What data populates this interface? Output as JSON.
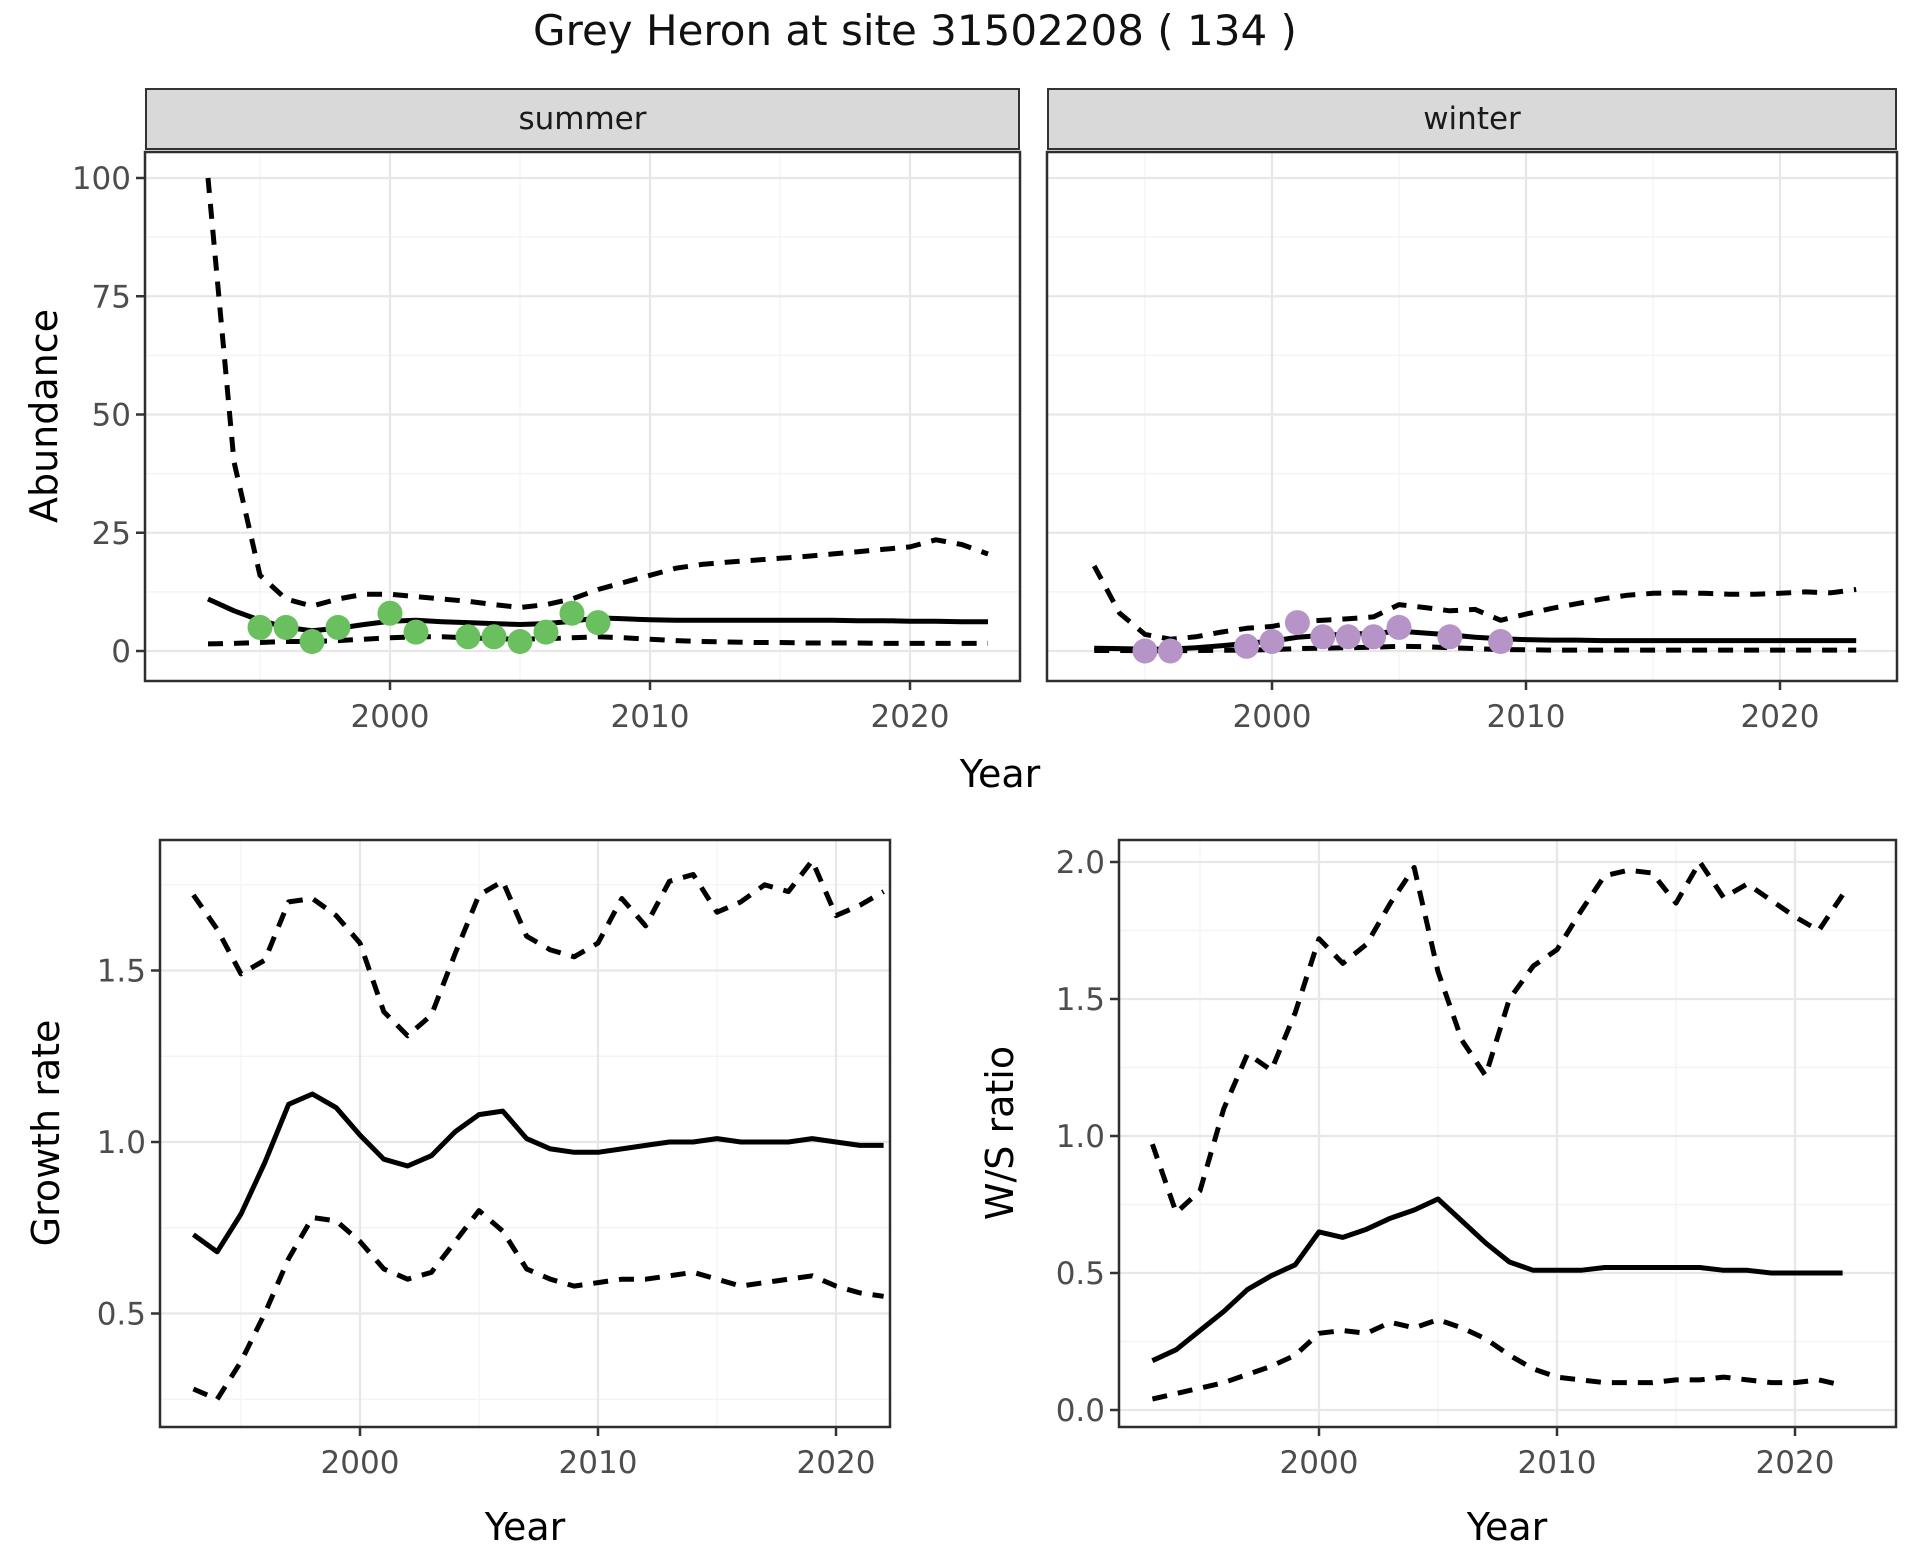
{
  "title": "Grey Heron at site 31502208 ( 134 )",
  "colors": {
    "summer_points": "#6abf5e",
    "winter_points": "#b794c7",
    "line": "#000000",
    "strip_background": "#d9d9d9",
    "tick_text": "#4d4d4d"
  },
  "chart_data": [
    {
      "id": "abundance-summer",
      "type": "line",
      "facet_label": "summer",
      "xlabel": "Year",
      "ylabel": "Abundance",
      "xlim": [
        1990.5,
        2024.6
      ],
      "ylim": [
        -6,
        106
      ],
      "grid": true,
      "legend": "none",
      "xticks": [
        2000,
        2010,
        2020
      ],
      "xtick_labels": [
        "2000",
        "2010",
        "2020"
      ],
      "xticks_minor": [
        1995,
        2005,
        2015
      ],
      "yticks": [
        0,
        25,
        50,
        75,
        100
      ],
      "ytick_labels": [
        "0",
        "25",
        "50",
        "75",
        "100"
      ],
      "yticks_minor": [
        12.5,
        37.5,
        62.5,
        87.5
      ],
      "show_ytick_labels": true,
      "x": [
        1993,
        1994,
        1995,
        1996,
        1997,
        1998,
        1999,
        2000,
        2001,
        2002,
        2003,
        2004,
        2005,
        2006,
        2007,
        2008,
        2009,
        2010,
        2011,
        2012,
        2013,
        2014,
        2015,
        2016,
        2017,
        2018,
        2019,
        2020,
        2021,
        2022,
        2023
      ],
      "series": [
        {
          "name": "median",
          "style": "solid",
          "values": [
            11,
            8.5,
            6.5,
            5,
            4.3,
            4.8,
            5.6,
            6.3,
            6.5,
            6.2,
            6,
            5.8,
            5.6,
            5.8,
            6.3,
            7,
            6.8,
            6.6,
            6.5,
            6.5,
            6.5,
            6.5,
            6.5,
            6.5,
            6.5,
            6.4,
            6.4,
            6.3,
            6.3,
            6.2,
            6.2
          ]
        },
        {
          "name": "upper-ci",
          "style": "dashed",
          "values": [
            100,
            40,
            16,
            11,
            9.5,
            11,
            12,
            12,
            11.5,
            11,
            10.5,
            9.8,
            9.2,
            9.8,
            11,
            13,
            14.5,
            16,
            17.5,
            18.3,
            18.8,
            19.2,
            19.6,
            20,
            20.5,
            21,
            21.5,
            22,
            23.5,
            22.5,
            20.5
          ]
        },
        {
          "name": "lower-ci",
          "style": "dashed",
          "values": [
            1.5,
            1.6,
            1.8,
            2,
            2,
            2.2,
            2.5,
            2.8,
            3,
            3,
            2.8,
            2.6,
            2.5,
            2.6,
            2.8,
            3,
            2.8,
            2.5,
            2.2,
            2,
            1.9,
            1.8,
            1.8,
            1.7,
            1.7,
            1.7,
            1.6,
            1.6,
            1.6,
            1.6,
            1.6
          ]
        }
      ],
      "points": {
        "color": "#6abf5e",
        "data": [
          [
            1995,
            5
          ],
          [
            1996,
            5
          ],
          [
            1997,
            2
          ],
          [
            1998,
            5
          ],
          [
            2000,
            8
          ],
          [
            2001,
            4
          ],
          [
            2003,
            3
          ],
          [
            2004,
            3
          ],
          [
            2005,
            2
          ],
          [
            2006,
            4
          ],
          [
            2007,
            8
          ],
          [
            2008,
            6
          ]
        ]
      }
    },
    {
      "id": "abundance-winter",
      "type": "line",
      "facet_label": "winter",
      "xlabel": "Year",
      "ylabel": "Abundance",
      "xlim": [
        1991.1,
        2024.6
      ],
      "ylim": [
        -6,
        106
      ],
      "grid": true,
      "legend": "none",
      "xticks": [
        2000,
        2010,
        2020
      ],
      "xtick_labels": [
        "2000",
        "2010",
        "2020"
      ],
      "xticks_minor": [
        1995,
        2005,
        2015
      ],
      "yticks": [
        0,
        25,
        50,
        75,
        100
      ],
      "ytick_labels": [
        "0",
        "25",
        "50",
        "75",
        "100"
      ],
      "yticks_minor": [
        12.5,
        37.5,
        62.5,
        87.5
      ],
      "show_ytick_labels": false,
      "x": [
        1993,
        1994,
        1995,
        1996,
        1997,
        1998,
        1999,
        2000,
        2001,
        2002,
        2003,
        2004,
        2005,
        2006,
        2007,
        2008,
        2009,
        2010,
        2011,
        2012,
        2013,
        2014,
        2015,
        2016,
        2017,
        2018,
        2019,
        2020,
        2021,
        2022,
        2023
      ],
      "series": [
        {
          "name": "median",
          "style": "solid",
          "values": [
            0.6,
            0.5,
            0.4,
            0.4,
            0.7,
            1.1,
            1.6,
            2.1,
            2.9,
            3.3,
            3.6,
            3.7,
            4.2,
            3.8,
            3.4,
            2.9,
            2.6,
            2.4,
            2.3,
            2.3,
            2.2,
            2.2,
            2.2,
            2.2,
            2.2,
            2.2,
            2.2,
            2.2,
            2.2,
            2.2,
            2.2
          ]
        },
        {
          "name": "upper-ci",
          "style": "dashed",
          "values": [
            18,
            8,
            3.5,
            2.5,
            3,
            4,
            4.8,
            5.2,
            6.2,
            6.5,
            6.8,
            7.2,
            9.8,
            9.2,
            8.5,
            8.8,
            6.5,
            7.8,
            9,
            10,
            11,
            11.8,
            12.2,
            12.3,
            12.2,
            12,
            12,
            12.2,
            12.5,
            12.3,
            13
          ]
        },
        {
          "name": "lower-ci",
          "style": "dashed",
          "values": [
            0.1,
            0.1,
            0.05,
            0.05,
            0.1,
            0.15,
            0.2,
            0.3,
            0.5,
            0.6,
            0.7,
            0.8,
            1,
            0.9,
            0.7,
            0.5,
            0.3,
            0.25,
            0.2,
            0.2,
            0.2,
            0.2,
            0.2,
            0.2,
            0.2,
            0.2,
            0.2,
            0.2,
            0.2,
            0.2,
            0.2
          ]
        }
      ],
      "points": {
        "color": "#b794c7",
        "data": [
          [
            1995,
            0
          ],
          [
            1996,
            0
          ],
          [
            1999,
            1
          ],
          [
            2000,
            2
          ],
          [
            2001,
            6
          ],
          [
            2002,
            3
          ],
          [
            2003,
            3
          ],
          [
            2004,
            3
          ],
          [
            2005,
            5
          ],
          [
            2007,
            3
          ],
          [
            2009,
            2
          ]
        ]
      }
    },
    {
      "id": "growth-rate",
      "type": "line",
      "facet_label": "",
      "xlabel": "Year",
      "ylabel": "Growth rate",
      "xlim": [
        1991.6,
        2022.3
      ],
      "ylim": [
        0.17,
        1.88
      ],
      "grid": true,
      "legend": "none",
      "xticks": [
        2000,
        2010,
        2020
      ],
      "xtick_labels": [
        "2000",
        "2010",
        "2020"
      ],
      "xticks_minor": [
        1995,
        2005,
        2015
      ],
      "yticks": [
        0.5,
        1.0,
        1.5
      ],
      "ytick_labels": [
        "0.5",
        "1.0",
        "1.5"
      ],
      "yticks_minor": [
        0.25,
        0.75,
        1.25,
        1.75
      ],
      "show_ytick_labels": true,
      "x": [
        1993,
        1994,
        1995,
        1996,
        1997,
        1998,
        1999,
        2000,
        2001,
        2002,
        2003,
        2004,
        2005,
        2006,
        2007,
        2008,
        2009,
        2010,
        2011,
        2012,
        2013,
        2014,
        2015,
        2016,
        2017,
        2018,
        2019,
        2020,
        2021,
        2022
      ],
      "series": [
        {
          "name": "median",
          "style": "solid",
          "values": [
            0.73,
            0.68,
            0.79,
            0.94,
            1.11,
            1.14,
            1.1,
            1.02,
            0.95,
            0.93,
            0.96,
            1.03,
            1.08,
            1.09,
            1.01,
            0.98,
            0.97,
            0.97,
            0.98,
            0.99,
            1.0,
            1.0,
            1.01,
            1.0,
            1.0,
            1.0,
            1.01,
            1.0,
            0.99,
            0.99
          ]
        },
        {
          "name": "upper-ci",
          "style": "dashed",
          "values": [
            1.72,
            1.62,
            1.49,
            1.53,
            1.7,
            1.71,
            1.66,
            1.58,
            1.38,
            1.31,
            1.37,
            1.55,
            1.72,
            1.76,
            1.6,
            1.56,
            1.54,
            1.58,
            1.71,
            1.63,
            1.76,
            1.78,
            1.67,
            1.7,
            1.75,
            1.73,
            1.82,
            1.66,
            1.69,
            1.73
          ]
        },
        {
          "name": "lower-ci",
          "style": "dashed",
          "values": [
            0.28,
            0.25,
            0.36,
            0.5,
            0.66,
            0.78,
            0.77,
            0.71,
            0.63,
            0.6,
            0.62,
            0.71,
            0.8,
            0.74,
            0.63,
            0.6,
            0.58,
            0.59,
            0.6,
            0.6,
            0.61,
            0.62,
            0.6,
            0.58,
            0.59,
            0.6,
            0.61,
            0.58,
            0.56,
            0.55
          ]
        }
      ],
      "points": null
    },
    {
      "id": "ws-ratio",
      "type": "line",
      "facet_label": "",
      "xlabel": "Year",
      "ylabel": "W/S ratio",
      "xlim": [
        1991.6,
        2024.2
      ],
      "ylim": [
        0.0,
        2.08
      ],
      "grid": true,
      "legend": "none",
      "xticks": [
        2000,
        2010,
        2020
      ],
      "xtick_labels": [
        "2000",
        "2010",
        "2020"
      ],
      "xticks_minor": [
        1995,
        2005,
        2015
      ],
      "yticks": [
        0.0,
        0.5,
        1.0,
        1.5,
        2.0
      ],
      "ytick_labels": [
        "0.0",
        "0.5",
        "1.0",
        "1.5",
        "2.0"
      ],
      "yticks_minor": [
        0.25,
        0.75,
        1.25,
        1.75
      ],
      "show_ytick_labels": true,
      "x": [
        1993,
        1994,
        1995,
        1996,
        1997,
        1998,
        1999,
        2000,
        2001,
        2002,
        2003,
        2004,
        2005,
        2006,
        2007,
        2008,
        2009,
        2010,
        2011,
        2012,
        2013,
        2014,
        2015,
        2016,
        2017,
        2018,
        2019,
        2020,
        2021,
        2022
      ],
      "series": [
        {
          "name": "median",
          "style": "solid",
          "values": [
            0.18,
            0.22,
            0.29,
            0.36,
            0.44,
            0.49,
            0.53,
            0.65,
            0.63,
            0.66,
            0.7,
            0.73,
            0.77,
            0.69,
            0.61,
            0.54,
            0.51,
            0.51,
            0.51,
            0.52,
            0.52,
            0.52,
            0.52,
            0.52,
            0.51,
            0.51,
            0.5,
            0.5,
            0.5,
            0.5
          ]
        },
        {
          "name": "upper-ci",
          "style": "dashed",
          "values": [
            0.97,
            0.72,
            0.8,
            1.1,
            1.3,
            1.24,
            1.45,
            1.72,
            1.63,
            1.7,
            1.85,
            1.98,
            1.6,
            1.35,
            1.22,
            1.5,
            1.62,
            1.68,
            1.82,
            1.95,
            1.97,
            1.96,
            1.85,
            2.0,
            1.87,
            1.92,
            1.86,
            1.8,
            1.75,
            1.88
          ]
        },
        {
          "name": "lower-ci",
          "style": "dashed",
          "values": [
            0.04,
            0.06,
            0.08,
            0.1,
            0.13,
            0.16,
            0.2,
            0.28,
            0.29,
            0.28,
            0.32,
            0.3,
            0.33,
            0.3,
            0.26,
            0.2,
            0.15,
            0.12,
            0.11,
            0.1,
            0.1,
            0.1,
            0.11,
            0.11,
            0.12,
            0.11,
            0.1,
            0.1,
            0.11,
            0.09
          ]
        }
      ],
      "points": null
    }
  ]
}
